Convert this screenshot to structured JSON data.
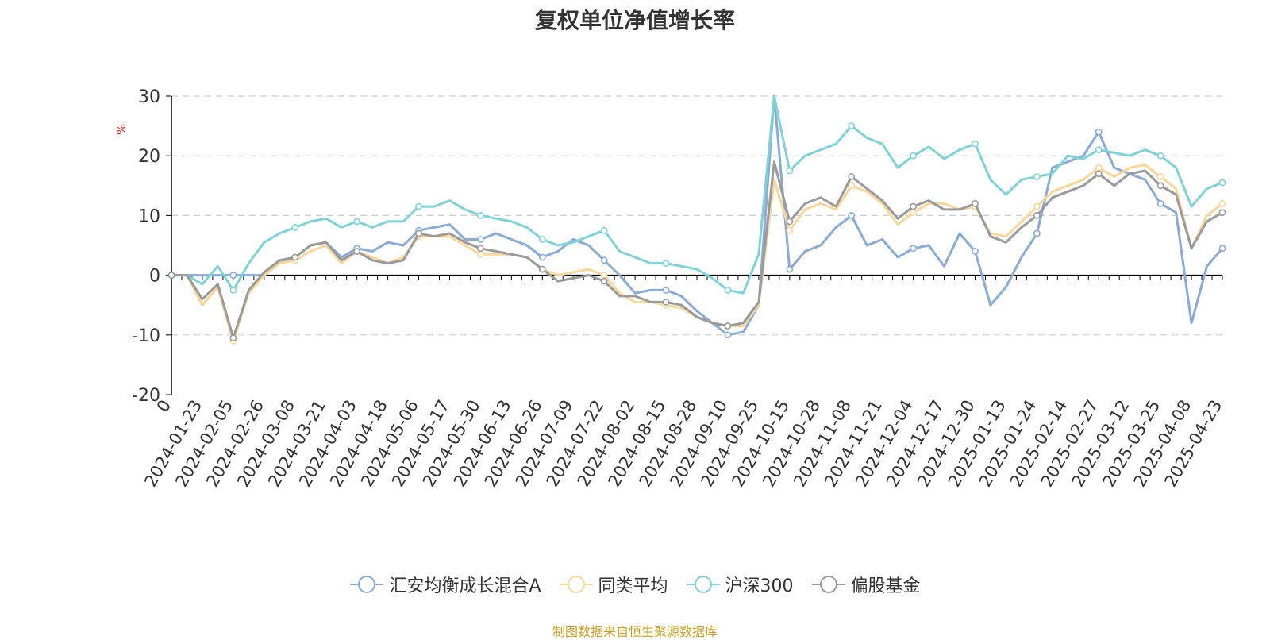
{
  "title": "复权单位净值增长率",
  "source_note": "制图数据来自恒生聚源数据库",
  "colors": {
    "fund": "#8aaad8",
    "peer_avg": "#f9d69a",
    "hs300": "#7fd3d6",
    "equity_funds": "#9a9a9a",
    "axis": "#000000",
    "grid": "#cccccc",
    "unit": "#e01e1e"
  },
  "chart_data": {
    "type": "line",
    "title": "复权单位净值增长率",
    "ylabel": "%",
    "ylim": [
      -20,
      30
    ],
    "yticks": [
      -20,
      -10,
      0,
      10,
      20,
      30
    ],
    "grid": true,
    "legend_position": "bottom",
    "x_tick_labels": [
      "0",
      "2024-01-23",
      "2024-02-05",
      "2024-02-26",
      "2024-03-08",
      "2024-03-21",
      "2024-04-03",
      "2024-04-18",
      "2024-05-06",
      "2024-05-17",
      "2024-05-30",
      "2024-06-13",
      "2024-06-26",
      "2024-07-09",
      "2024-07-22",
      "2024-08-02",
      "2024-08-15",
      "2024-08-28",
      "2024-09-10",
      "2024-09-25",
      "2024-10-15",
      "2024-10-28",
      "2024-11-08",
      "2024-11-21",
      "2024-12-04",
      "2024-12-17",
      "2024-12-30",
      "2025-01-13",
      "2025-01-24",
      "2025-02-14",
      "2025-02-27",
      "2025-03-12",
      "2025-03-25",
      "2025-04-08",
      "2025-04-23"
    ],
    "x": [
      "2024-01-10",
      "2024-01-17",
      "2024-01-23",
      "2024-01-30",
      "2024-02-05",
      "2024-02-19",
      "2024-02-26",
      "2024-03-01",
      "2024-03-08",
      "2024-03-15",
      "2024-03-21",
      "2024-03-27",
      "2024-04-03",
      "2024-04-11",
      "2024-04-18",
      "2024-04-26",
      "2024-05-06",
      "2024-05-10",
      "2024-05-17",
      "2024-05-24",
      "2024-05-30",
      "2024-06-06",
      "2024-06-13",
      "2024-06-20",
      "2024-06-26",
      "2024-07-02",
      "2024-07-09",
      "2024-07-16",
      "2024-07-22",
      "2024-07-26",
      "2024-08-02",
      "2024-08-09",
      "2024-08-15",
      "2024-08-22",
      "2024-08-28",
      "2024-09-04",
      "2024-09-10",
      "2024-09-18",
      "2024-09-25",
      "2024-09-30",
      "2024-10-15",
      "2024-10-22",
      "2024-10-28",
      "2024-11-01",
      "2024-11-08",
      "2024-11-15",
      "2024-11-21",
      "2024-11-28",
      "2024-12-04",
      "2024-12-11",
      "2024-12-17",
      "2024-12-23",
      "2024-12-30",
      "2025-01-06",
      "2025-01-13",
      "2025-01-17",
      "2025-01-24",
      "2025-02-07",
      "2025-02-14",
      "2025-02-21",
      "2025-02-27",
      "2025-03-05",
      "2025-03-12",
      "2025-03-19",
      "2025-03-25",
      "2025-04-01",
      "2025-04-08",
      "2025-04-15",
      "2025-04-23"
    ],
    "series": [
      {
        "name": "汇安均衡成长混合A",
        "color": "#8aaad8",
        "values": [
          0,
          0,
          0,
          0,
          0,
          0,
          0,
          2,
          3,
          5,
          5.5,
          3,
          4.5,
          4,
          5.5,
          5,
          7.5,
          8,
          8.5,
          6,
          6,
          7,
          6,
          5,
          3,
          4,
          6,
          5,
          2.5,
          0,
          -3,
          -2.5,
          -2.5,
          -3.5,
          -6,
          -8,
          -10,
          -9.5,
          -5,
          30,
          1,
          4,
          5,
          8,
          10,
          5,
          6,
          3,
          4.5,
          5,
          1.5,
          7,
          4,
          -5,
          -2,
          3,
          7,
          18,
          19,
          20,
          24,
          18,
          17,
          16,
          12,
          10.5,
          -8,
          1.5,
          4.5
        ]
      },
      {
        "name": "同类平均",
        "color": "#f9d69a",
        "values": [
          0,
          0,
          -5,
          -2,
          -11,
          -3,
          0,
          2,
          2.5,
          4,
          5,
          2,
          4,
          3,
          2,
          3,
          6.5,
          6.5,
          6.5,
          5,
          3.5,
          3.5,
          3.5,
          3,
          1,
          0,
          0.5,
          1,
          0,
          -3,
          -4.5,
          -4.5,
          -5,
          -5.5,
          -7,
          -8,
          -8.5,
          -8.5,
          -5,
          16,
          7.5,
          11,
          12,
          11,
          15,
          14,
          12,
          8.5,
          10.5,
          12,
          12,
          11,
          11.5,
          7,
          6.5,
          9,
          11.5,
          14,
          15,
          16,
          18,
          16.5,
          18,
          18.5,
          16.5,
          14.5,
          4.5,
          10,
          12
        ]
      },
      {
        "name": "沪深300",
        "color": "#7fd3d6",
        "values": [
          0,
          0,
          -1.5,
          1.5,
          -2.5,
          2,
          5.5,
          7,
          8,
          9,
          9.5,
          8,
          9,
          8,
          9,
          9,
          11.5,
          11.5,
          12.5,
          11,
          10,
          9.5,
          9,
          8,
          6,
          5,
          5.5,
          6.5,
          7.5,
          4,
          3,
          2,
          2,
          1.5,
          1,
          -0.5,
          -2.5,
          -3,
          3.5,
          30,
          17.5,
          20,
          21,
          22,
          25,
          23,
          22,
          18,
          20,
          21.5,
          19.5,
          21,
          22,
          16,
          13.5,
          16,
          16.5,
          17,
          20,
          19.5,
          21,
          20.5,
          20,
          21,
          20,
          18,
          11.5,
          14.5,
          15.5
        ]
      },
      {
        "name": "偏股基金",
        "color": "#9a9a9a",
        "values": [
          0,
          0,
          -4,
          -1.5,
          -10.5,
          -2.5,
          0.5,
          2.5,
          3,
          5,
          5.5,
          2.5,
          4,
          2.5,
          2,
          2.5,
          7,
          6.5,
          7,
          5.5,
          4.5,
          4,
          3.5,
          3,
          1,
          -1,
          -0.5,
          0,
          -1,
          -3.5,
          -3.5,
          -4.5,
          -4.5,
          -5,
          -7,
          -8,
          -8.5,
          -8,
          -4.5,
          19,
          9,
          12,
          13,
          11.5,
          16.5,
          14.5,
          12.5,
          9.5,
          11.5,
          12.5,
          11,
          11,
          12,
          6.5,
          5.5,
          8,
          10,
          13,
          14,
          15,
          17,
          15,
          17,
          17.5,
          15,
          13.5,
          4.5,
          9,
          10.5
        ]
      }
    ]
  }
}
